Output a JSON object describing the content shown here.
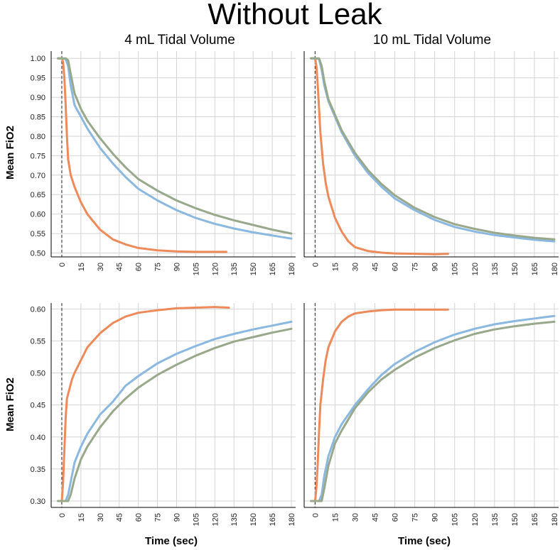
{
  "figure": {
    "title": "Without Leak",
    "col_titles": [
      "4 mL Tidal Volume",
      "10 mL Tidal Volume"
    ],
    "ylabel": "Mean FiO2",
    "xlabel": "Time (sec)"
  },
  "colors": {
    "orange": "#EE8A5A",
    "blue": "#8AB8E0",
    "green": "#98A88A",
    "grid": "#d4d4d4",
    "axis": "#000000"
  },
  "chart_data": [
    {
      "type": "line",
      "panel": "top-left",
      "title": "4 mL Tidal Volume",
      "ylabel": "Mean FiO2",
      "xlabel": "",
      "xlim": [
        -5,
        180
      ],
      "ylim": [
        0.49,
        1.015
      ],
      "xticks": [
        "0",
        "15",
        "30",
        "45",
        "60",
        "75",
        "90",
        "105",
        "120",
        "135",
        "150",
        "165",
        "180"
      ],
      "yticks": [
        "0.50",
        "0.55",
        "0.60",
        "0.65",
        "0.70",
        "0.75",
        "0.80",
        "0.85",
        "0.90",
        "0.95",
        "1.00"
      ],
      "vline_x": 0,
      "grid": true,
      "series": [
        {
          "color_key": "orange",
          "x": [
            -3,
            0,
            1,
            2,
            3,
            4,
            5,
            7,
            10,
            15,
            20,
            30,
            40,
            50,
            60,
            75,
            90,
            105,
            120,
            129
          ],
          "y": [
            1.0,
            1.0,
            0.99,
            0.95,
            0.88,
            0.8,
            0.74,
            0.7,
            0.67,
            0.63,
            0.6,
            0.56,
            0.535,
            0.522,
            0.513,
            0.507,
            0.504,
            0.503,
            0.503,
            0.503
          ]
        },
        {
          "color_key": "blue",
          "x": [
            -3,
            0,
            3,
            5,
            7,
            10,
            15,
            20,
            30,
            40,
            50,
            60,
            75,
            90,
            105,
            120,
            135,
            150,
            165,
            180
          ],
          "y": [
            1.0,
            1.0,
            0.998,
            0.98,
            0.93,
            0.88,
            0.85,
            0.82,
            0.77,
            0.73,
            0.695,
            0.665,
            0.635,
            0.61,
            0.59,
            0.575,
            0.563,
            0.553,
            0.545,
            0.537
          ]
        },
        {
          "color_key": "green",
          "x": [
            -3,
            0,
            3,
            5,
            7,
            10,
            15,
            20,
            30,
            40,
            50,
            60,
            75,
            90,
            105,
            120,
            135,
            150,
            165,
            180
          ],
          "y": [
            1.0,
            1.0,
            1.0,
            0.995,
            0.96,
            0.91,
            0.87,
            0.84,
            0.795,
            0.755,
            0.72,
            0.69,
            0.66,
            0.635,
            0.615,
            0.598,
            0.584,
            0.572,
            0.56,
            0.55
          ]
        }
      ]
    },
    {
      "type": "line",
      "panel": "top-right",
      "title": "10 mL Tidal Volume",
      "ylabel": "",
      "xlabel": "",
      "xlim": [
        -5,
        180
      ],
      "ylim": [
        0.49,
        1.015
      ],
      "xticks": [
        "0",
        "15",
        "30",
        "45",
        "60",
        "75",
        "90",
        "105",
        "120",
        "135",
        "150",
        "165",
        "180"
      ],
      "yticks": [],
      "vline_x": 0,
      "grid": true,
      "series": [
        {
          "color_key": "orange",
          "x": [
            -3,
            0,
            1,
            2,
            3,
            4,
            6,
            8,
            10,
            15,
            20,
            25,
            30,
            40,
            50,
            60,
            75,
            90,
            100
          ],
          "y": [
            1.0,
            1.0,
            0.98,
            0.93,
            0.87,
            0.81,
            0.73,
            0.68,
            0.645,
            0.59,
            0.555,
            0.53,
            0.515,
            0.505,
            0.501,
            0.499,
            0.498,
            0.497,
            0.498
          ]
        },
        {
          "color_key": "blue",
          "x": [
            -3,
            0,
            3,
            5,
            7,
            10,
            15,
            20,
            30,
            40,
            50,
            60,
            75,
            90,
            105,
            120,
            135,
            150,
            165,
            180
          ],
          "y": [
            1.0,
            1.0,
            0.998,
            0.97,
            0.93,
            0.89,
            0.85,
            0.81,
            0.75,
            0.705,
            0.67,
            0.64,
            0.61,
            0.585,
            0.567,
            0.555,
            0.546,
            0.54,
            0.534,
            0.53
          ]
        },
        {
          "color_key": "green",
          "x": [
            -3,
            0,
            3,
            5,
            7,
            10,
            15,
            20,
            30,
            40,
            50,
            60,
            75,
            90,
            105,
            120,
            135,
            150,
            165,
            180
          ],
          "y": [
            1.0,
            1.0,
            1.0,
            0.98,
            0.94,
            0.895,
            0.855,
            0.815,
            0.757,
            0.712,
            0.677,
            0.648,
            0.616,
            0.592,
            0.574,
            0.562,
            0.552,
            0.545,
            0.539,
            0.535
          ]
        }
      ]
    },
    {
      "type": "line",
      "panel": "bottom-left",
      "title": "",
      "ylabel": "Mean FiO2",
      "xlabel": "Time (sec)",
      "xlim": [
        -5,
        180
      ],
      "ylim": [
        0.29,
        0.607
      ],
      "xticks": [
        "0",
        "15",
        "30",
        "45",
        "60",
        "75",
        "90",
        "105",
        "120",
        "135",
        "150",
        "165",
        "180"
      ],
      "yticks": [
        "0.30",
        "0.35",
        "0.40",
        "0.45",
        "0.50",
        "0.55",
        "0.60"
      ],
      "vline_x": 0,
      "grid": true,
      "series": [
        {
          "color_key": "orange",
          "x": [
            -3,
            0,
            1,
            2,
            3,
            4,
            6,
            8,
            10,
            15,
            20,
            30,
            40,
            50,
            60,
            75,
            90,
            105,
            120,
            131
          ],
          "y": [
            0.3,
            0.3,
            0.33,
            0.38,
            0.43,
            0.46,
            0.475,
            0.49,
            0.5,
            0.52,
            0.54,
            0.562,
            0.578,
            0.588,
            0.594,
            0.598,
            0.601,
            0.602,
            0.603,
            0.602
          ]
        },
        {
          "color_key": "blue",
          "x": [
            -3,
            0,
            3,
            5,
            7,
            10,
            15,
            20,
            30,
            40,
            50,
            60,
            75,
            90,
            105,
            120,
            135,
            150,
            165,
            180
          ],
          "y": [
            0.3,
            0.3,
            0.3,
            0.31,
            0.33,
            0.36,
            0.385,
            0.405,
            0.435,
            0.455,
            0.48,
            0.495,
            0.515,
            0.53,
            0.542,
            0.553,
            0.561,
            0.568,
            0.574,
            0.58
          ]
        },
        {
          "color_key": "green",
          "x": [
            -3,
            0,
            3,
            5,
            7,
            10,
            15,
            20,
            30,
            40,
            50,
            60,
            75,
            90,
            105,
            120,
            135,
            150,
            165,
            180
          ],
          "y": [
            0.3,
            0.3,
            0.3,
            0.3,
            0.31,
            0.335,
            0.365,
            0.385,
            0.415,
            0.44,
            0.46,
            0.477,
            0.497,
            0.513,
            0.527,
            0.539,
            0.549,
            0.556,
            0.563,
            0.569
          ]
        }
      ]
    },
    {
      "type": "line",
      "panel": "bottom-right",
      "title": "",
      "ylabel": "",
      "xlabel": "Time (sec)",
      "xlim": [
        -5,
        180
      ],
      "ylim": [
        0.29,
        0.607
      ],
      "xticks": [
        "0",
        "15",
        "30",
        "45",
        "60",
        "75",
        "90",
        "105",
        "120",
        "135",
        "150",
        "165",
        "180"
      ],
      "yticks": [],
      "vline_x": 0,
      "grid": true,
      "series": [
        {
          "color_key": "orange",
          "x": [
            -3,
            0,
            1,
            2,
            3,
            4,
            5,
            6,
            8,
            10,
            15,
            20,
            25,
            30,
            40,
            50,
            60,
            75,
            90,
            100
          ],
          "y": [
            0.3,
            0.3,
            0.32,
            0.36,
            0.41,
            0.45,
            0.47,
            0.49,
            0.52,
            0.54,
            0.565,
            0.58,
            0.588,
            0.593,
            0.596,
            0.598,
            0.599,
            0.599,
            0.599,
            0.599
          ]
        },
        {
          "color_key": "blue",
          "x": [
            -3,
            0,
            3,
            5,
            7,
            10,
            15,
            20,
            30,
            40,
            50,
            60,
            75,
            90,
            105,
            120,
            135,
            150,
            165,
            180
          ],
          "y": [
            0.3,
            0.3,
            0.3,
            0.31,
            0.34,
            0.37,
            0.4,
            0.42,
            0.45,
            0.475,
            0.497,
            0.514,
            0.533,
            0.548,
            0.56,
            0.569,
            0.576,
            0.581,
            0.585,
            0.589
          ]
        },
        {
          "color_key": "green",
          "x": [
            -3,
            0,
            3,
            5,
            7,
            10,
            15,
            20,
            30,
            40,
            50,
            60,
            75,
            90,
            105,
            120,
            135,
            150,
            165,
            180
          ],
          "y": [
            0.3,
            0.3,
            0.3,
            0.3,
            0.32,
            0.355,
            0.39,
            0.41,
            0.445,
            0.47,
            0.49,
            0.505,
            0.524,
            0.539,
            0.551,
            0.561,
            0.568,
            0.573,
            0.577,
            0.58
          ]
        }
      ]
    }
  ]
}
